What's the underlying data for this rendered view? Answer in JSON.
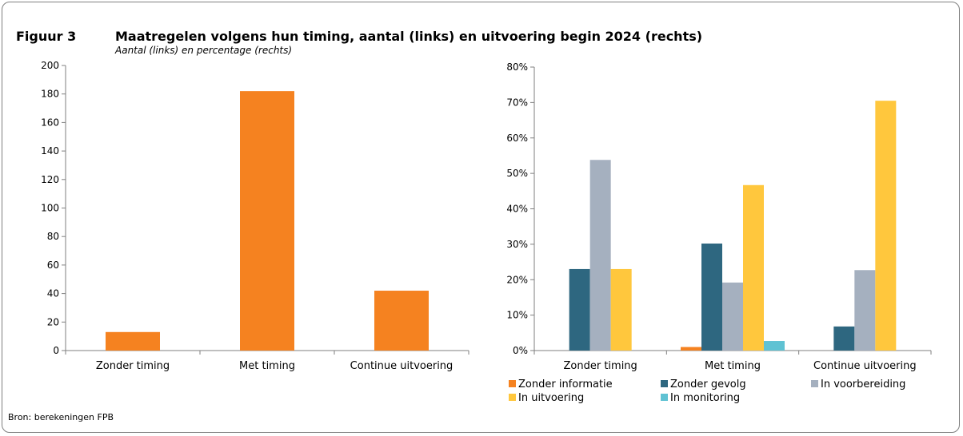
{
  "figure": {
    "label": "Figuur 3",
    "title": "Maatregelen volgens hun timing, aantal (links) en uitvoering begin 2024 (rechts)",
    "subtitle": "Aantal (links) en percentage (rechts)",
    "source": "Bron: berekeningen FPB"
  },
  "colors": {
    "orange": "#f58220",
    "dark_teal": "#2e6780",
    "gray": "#a5b0bf",
    "yellow": "#ffc73d",
    "cyan": "#5fc2d3"
  },
  "chart_data": [
    {
      "type": "bar",
      "categories": [
        "Zonder timing",
        "Met timing",
        "Continue uitvoering"
      ],
      "values": [
        13,
        182,
        42
      ],
      "ylim": [
        0,
        200
      ],
      "yticks": [
        0,
        20,
        40,
        60,
        80,
        100,
        120,
        140,
        160,
        180,
        200
      ],
      "ytick_labels": [
        "0",
        "20",
        "40",
        "60",
        "80",
        "100",
        "120",
        "140",
        "160",
        "180",
        "200"
      ],
      "color": "#f58220",
      "grid": false
    },
    {
      "type": "bar",
      "categories": [
        "Zonder timing",
        "Met timing",
        "Continue uitvoering"
      ],
      "series": [
        {
          "name": "Zonder informatie",
          "color": "#f58220",
          "values": [
            0,
            1,
            0
          ]
        },
        {
          "name": "Zonder gevolg",
          "color": "#2e6780",
          "values": [
            23,
            30.2,
            6.8
          ]
        },
        {
          "name": "In voorbereiding",
          "color": "#a5b0bf",
          "values": [
            53.8,
            19.2,
            22.7
          ]
        },
        {
          "name": "In uitvoering",
          "color": "#ffc73d",
          "values": [
            23,
            46.7,
            70.5
          ]
        },
        {
          "name": "In monitoring",
          "color": "#5fc2d3",
          "values": [
            0,
            2.7,
            0
          ]
        }
      ],
      "ylim": [
        0,
        80
      ],
      "yticks": [
        0,
        10,
        20,
        30,
        40,
        50,
        60,
        70,
        80
      ],
      "ytick_labels": [
        "0%",
        "10%",
        "20%",
        "30%",
        "40%",
        "50%",
        "60%",
        "70%",
        "80%"
      ],
      "legend_position": "bottom",
      "grid": false
    }
  ]
}
